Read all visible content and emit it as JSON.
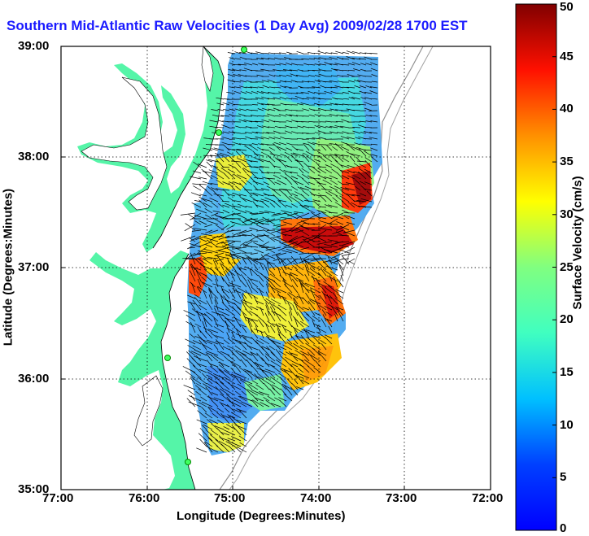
{
  "title": "Southern Mid-Atlantic Raw Velocities (1 Day Avg) 2009/02/28 1700 EST",
  "map": {
    "xlabel": "Longitude (Degrees:Minutes)",
    "ylabel": "Latitude (Degrees:Minutes)",
    "x_ticks": [
      "77:00",
      "76:00",
      "75:00",
      "74:00",
      "73:00",
      "72:00"
    ],
    "y_ticks": [
      "39:00",
      "38:00",
      "37:00",
      "36:00",
      "35:00"
    ],
    "lon_range": [
      -77,
      -72
    ],
    "lat_range": [
      35,
      39
    ],
    "land_color": "#55f5a8",
    "water_color": "#ffffff",
    "grid": "dotted",
    "stations": [
      "station-north",
      "station-delaware",
      "station-virginia",
      "station-hatteras"
    ]
  },
  "colorbar": {
    "label": "Surface Velocity (cm/s)",
    "ticks": [
      "0",
      "5",
      "10",
      "15",
      "20",
      "25",
      "30",
      "35",
      "40",
      "45",
      "50"
    ],
    "min": 0,
    "max": 50,
    "colormap": "jet"
  }
}
